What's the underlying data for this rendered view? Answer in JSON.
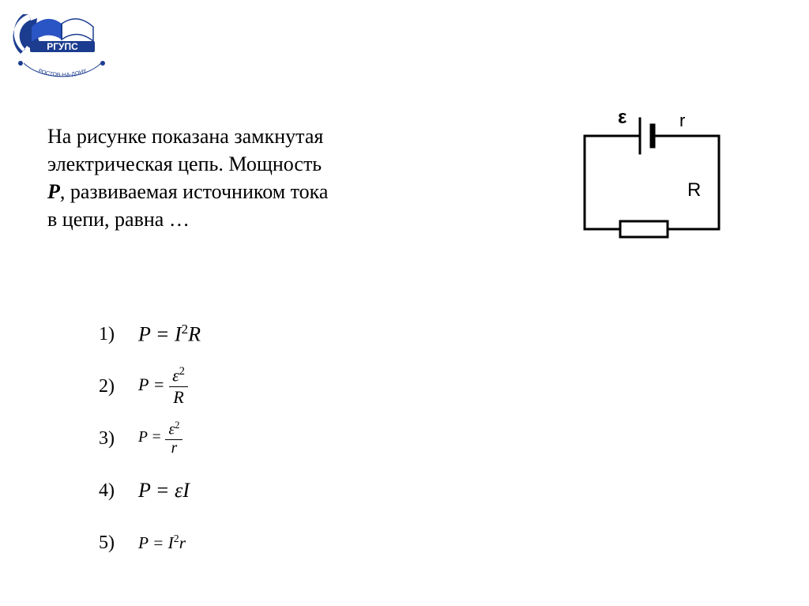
{
  "logo": {
    "band_text": "РГУПС",
    "curve_text": "РОСТОВ-НА-ДОНУ",
    "colors": {
      "gear": "#1b3c8f",
      "book_left": "#2a55c4",
      "book_right": "#ffffff",
      "band": "#1b3c8f",
      "band_text": "#ffffff",
      "stroke": "#1b3c8f"
    }
  },
  "question": {
    "line1": "На рисунке показана замкнутая",
    "line2": "электрическая цепь. Мощность",
    "line3_prefix_italic": "Р",
    "line3_rest": ", развиваемая источником тока",
    "line4": "в цепи, равна …"
  },
  "circuit": {
    "labels": {
      "emf": "ε",
      "r": "r",
      "R": "R"
    },
    "stroke": "#000000",
    "stroke_width": 3,
    "font_family_sans": "Arial, Helvetica, sans-serif"
  },
  "answers": {
    "font_family": "Times New Roman",
    "items": [
      {
        "n": "1)",
        "type": "inline",
        "scale": 1.0,
        "html": "P = I<span class='sup'>2</span>R"
      },
      {
        "n": "2)",
        "type": "frac",
        "scale": 0.85,
        "lhs": "P = ",
        "num_html": "ε<span class='sup'>2</span>",
        "den_html": "R"
      },
      {
        "n": "3)",
        "type": "frac",
        "scale": 0.75,
        "lhs": "P = ",
        "num_html": "ε<span class='sup'>2</span>",
        "den_html": "r"
      },
      {
        "n": "4)",
        "type": "inline",
        "scale": 1.0,
        "html": "P = εI"
      },
      {
        "n": "5)",
        "type": "inline",
        "scale": 0.82,
        "html": "P = I<span class='sup'>2</span>r"
      }
    ]
  }
}
